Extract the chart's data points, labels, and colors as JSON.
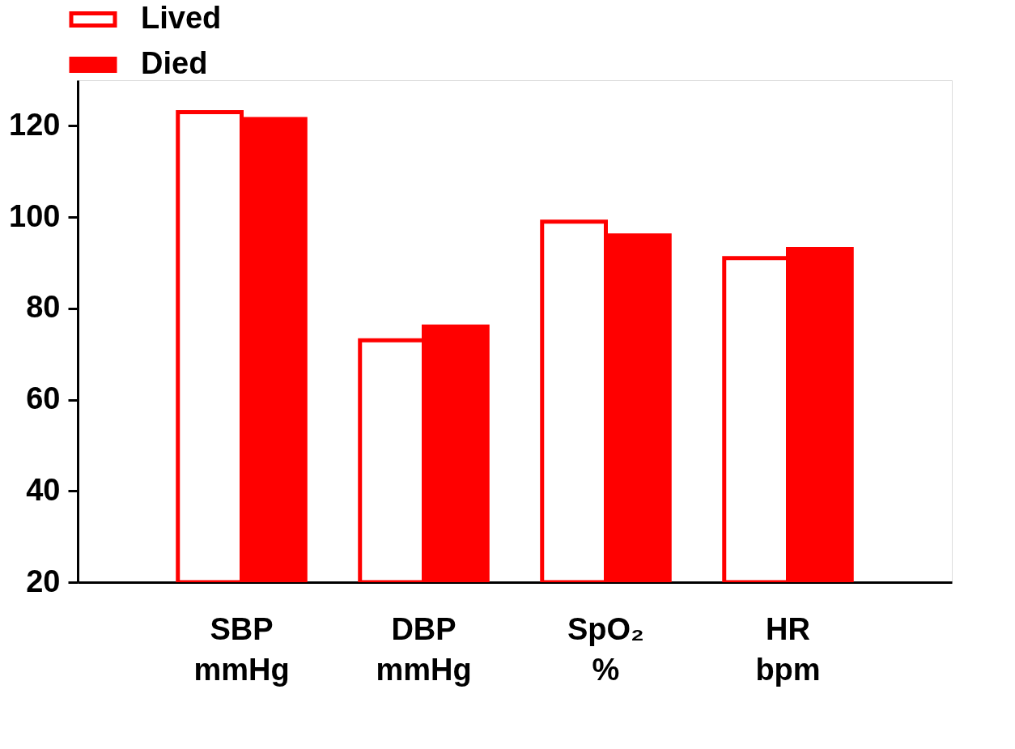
{
  "chart_data": {
    "type": "bar",
    "categories": [
      "SBP\nmmHg",
      "DBP\nmmHg",
      "SpO₂\n%",
      "HR\nbpm"
    ],
    "series": [
      {
        "name": "Lived",
        "color": "#ff0000",
        "values": [
          123,
          73,
          99,
          91
        ]
      },
      {
        "name": "Died",
        "color": "#ff0000",
        "values": [
          121.5,
          76,
          96,
          93
        ]
      }
    ],
    "ylim": [
      20,
      130
    ],
    "yticks": [
      20,
      40,
      60,
      80,
      100,
      120
    ],
    "grid": false,
    "legend": "top"
  }
}
